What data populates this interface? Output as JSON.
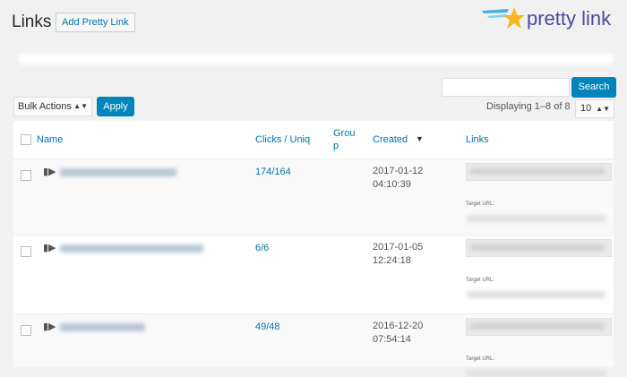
{
  "header": {
    "title": "Links",
    "add_button": "Add Pretty Link",
    "logo_text": "pretty link"
  },
  "search": {
    "value": "",
    "button": "Search"
  },
  "bulk": {
    "selected": "Bulk Actions",
    "apply": "Apply"
  },
  "pagination": {
    "displaying": "Displaying 1–8 of 8",
    "per_page": "10"
  },
  "columns": {
    "name": "Name",
    "clicks": "Clicks / Uniq",
    "group": "Grou\np",
    "created": "Created",
    "sort_indicator": "▼",
    "links": "Links"
  },
  "rows": [
    {
      "clicks": "174/164",
      "date": "2017-01-12",
      "time": "04:10:39",
      "target_label": "Target URL:"
    },
    {
      "clicks": "6/6",
      "date": "2017-01-05",
      "time": "12:24:18",
      "target_label": "Target URL:"
    },
    {
      "clicks": "49/48",
      "date": "2016-12-20",
      "time": "07:54:14",
      "target_label": "Target URL:"
    }
  ],
  "colors": {
    "accent": "#0085ba",
    "link": "#0073aa"
  }
}
